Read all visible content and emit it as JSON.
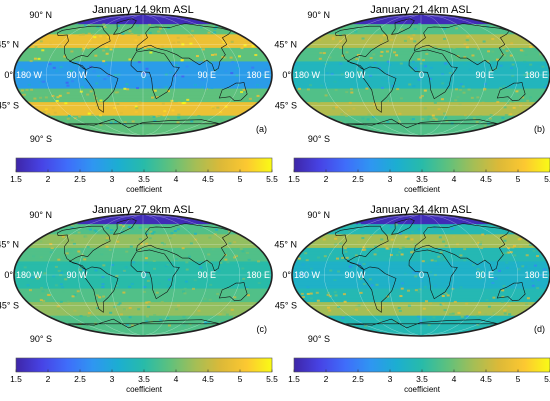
{
  "colorbar": {
    "ticks": [
      "1.5",
      "2",
      "2.5",
      "3",
      "3.5",
      "4",
      "4.5",
      "5",
      "5.5"
    ],
    "label": "coefficient",
    "min": 1.5,
    "max": 5.5
  },
  "graticule_labels": {
    "lat_north": "90° N",
    "lat_45n": "45° N",
    "lat_0": "0°",
    "lat_45s": "45° S",
    "lat_south": "90° S",
    "lon_180w": "180 W",
    "lon_90w": "90 W",
    "lon_0": "0",
    "lon_90e": "90 E",
    "lon_180e": "180 E"
  },
  "panels": [
    {
      "title": "January 14.9km ASL",
      "label": "(a)",
      "low_band_level": 2.8,
      "mid_level": 3.9,
      "high_level": 4.9
    },
    {
      "title": "January 21.4km ASL",
      "label": "(b)",
      "low_band_level": 3.3,
      "mid_level": 3.8,
      "high_level": 4.4
    },
    {
      "title": "January 27.9km ASL",
      "label": "(c)",
      "low_band_level": 3.5,
      "mid_level": 3.8,
      "high_level": 4.2
    },
    {
      "title": "January 34.4km ASL",
      "label": "(d)",
      "low_band_level": 3.2,
      "mid_level": 3.4,
      "high_level": 4.3
    }
  ],
  "colors": {
    "parula": [
      "#3e26a8",
      "#4743e5",
      "#3f6dfa",
      "#2f96f1",
      "#1caed1",
      "#28bba9",
      "#5ec17d",
      "#a4be56",
      "#dcb938",
      "#fcc831",
      "#f9fb15"
    ]
  }
}
